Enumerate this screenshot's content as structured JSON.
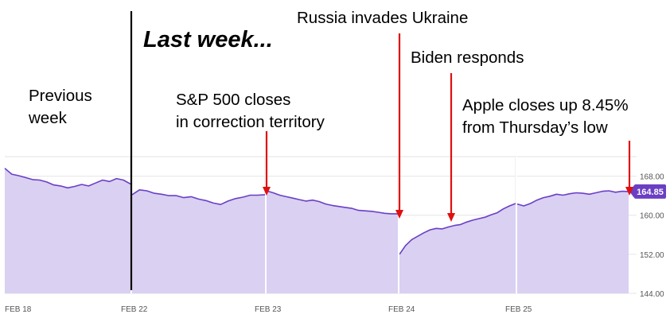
{
  "chart_data": {
    "type": "area",
    "title": "Last week...",
    "xlabel": "",
    "ylabel": "",
    "ylim": [
      144,
      172
    ],
    "y_ticks": [
      "168.00",
      "160.00",
      "152.00",
      "144.00"
    ],
    "y_tick_values": [
      168,
      160,
      152,
      144
    ],
    "x_ticks": [
      "FEB 18",
      "FEB 22",
      "FEB 23",
      "FEB 24",
      "FEB 25"
    ],
    "price_badge": "164.85",
    "colors": {
      "line": "#6a3fc4",
      "fill": "#d9d0f2",
      "badge": "#6a3fc4",
      "arrow": "#e01010"
    },
    "sessions": [
      {
        "label": "FEB 18",
        "values": [
          169.6,
          168.4,
          168.1,
          167.7,
          167.3,
          167.2,
          166.8,
          166.2,
          166.0,
          165.6,
          165.9,
          166.3,
          166.0,
          166.6,
          167.2,
          166.9,
          167.5,
          167.2,
          166.4
        ]
      },
      {
        "label": "FEB 22",
        "values": [
          164.2,
          165.2,
          165.0,
          164.5,
          164.3,
          164.0,
          164.0,
          163.6,
          163.8,
          163.3,
          163.0,
          162.5,
          162.2,
          162.9,
          163.4,
          163.7,
          164.1,
          164.1,
          164.2
        ]
      },
      {
        "label": "FEB 23",
        "values": [
          165.0,
          164.6,
          164.1,
          163.8,
          163.5,
          163.2,
          162.9,
          163.1,
          162.8,
          162.3,
          162.0,
          161.8,
          161.6,
          161.4,
          161.0,
          160.9,
          160.8,
          160.6,
          160.4,
          160.3,
          160.3
        ]
      },
      {
        "label": "FEB 24",
        "values": [
          152.0,
          153.8,
          155.0,
          155.7,
          156.4,
          157.0,
          157.3,
          157.2,
          157.6,
          157.9,
          158.1,
          158.6,
          159.0,
          159.3,
          159.6,
          160.1,
          160.5,
          161.3,
          161.9,
          162.4
        ]
      },
      {
        "label": "FEB 25",
        "values": [
          162.3,
          161.9,
          162.4,
          163.1,
          163.6,
          163.9,
          164.3,
          164.1,
          164.4,
          164.6,
          164.5,
          164.3,
          164.6,
          164.9,
          165.0,
          164.7,
          164.9,
          164.85
        ]
      }
    ]
  },
  "annotations": {
    "previous_week": "Previous\nweek",
    "sp500": "S&P 500 closes\nin correction territory",
    "russia": "Russia invades Ukraine",
    "biden": "Biden responds",
    "apple": "Apple closes up 8.45%\nfrom Thursday’s low"
  }
}
